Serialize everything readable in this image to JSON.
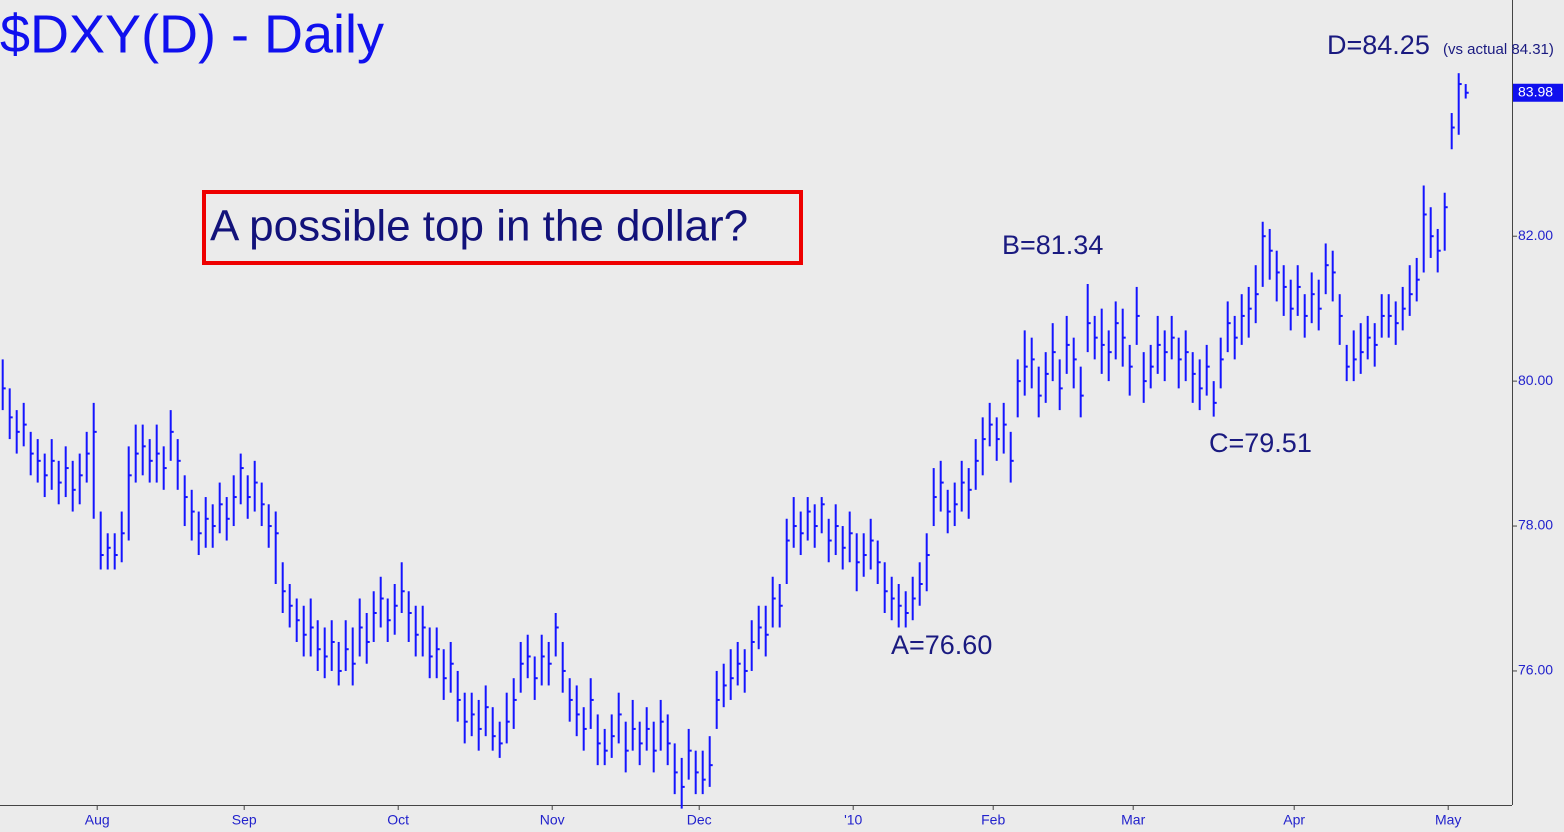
{
  "chart_data": {
    "type": "hlc",
    "title": "$DXY(D) - Daily",
    "callout": "A possible top in the dollar?",
    "annotations": [
      "A=76.60",
      "B=81.34",
      "C=79.51",
      "D=84.25",
      "(vs actual 84.31)"
    ],
    "color": "#1414ff",
    "ylim": [
      74.15,
      85.26
    ],
    "yticks": [
      {
        "value": 76,
        "label": "76.00"
      },
      {
        "value": 78,
        "label": "78.00"
      },
      {
        "value": 80,
        "label": "80.00"
      },
      {
        "value": 82,
        "label": "82.00"
      }
    ],
    "xticks": [
      {
        "value": 13.5,
        "label": "Aug"
      },
      {
        "value": 34.5,
        "label": "Sep"
      },
      {
        "value": 56.5,
        "label": "Oct"
      },
      {
        "value": 78.5,
        "label": "Nov"
      },
      {
        "value": 99.5,
        "label": "Dec"
      },
      {
        "value": 121.5,
        "label": "'10"
      },
      {
        "value": 141.5,
        "label": "Feb"
      },
      {
        "value": 161.5,
        "label": "Mar"
      },
      {
        "value": 184.5,
        "label": "Apr"
      },
      {
        "value": 206.5,
        "label": "May"
      }
    ],
    "high": [
      80.3,
      79.9,
      79.6,
      79.7,
      79.3,
      79.2,
      79.0,
      79.2,
      78.9,
      79.1,
      78.9,
      79.0,
      79.3,
      79.7,
      78.2,
      77.9,
      77.9,
      78.2,
      79.1,
      79.4,
      79.4,
      79.2,
      79.4,
      79.1,
      79.6,
      79.2,
      78.7,
      78.5,
      78.2,
      78.4,
      78.3,
      78.6,
      78.4,
      78.7,
      79.0,
      78.7,
      78.9,
      78.6,
      78.3,
      78.2,
      77.5,
      77.2,
      77.0,
      76.9,
      77.0,
      76.7,
      76.6,
      76.7,
      76.4,
      76.7,
      76.6,
      77.0,
      76.8,
      77.1,
      77.3,
      77.0,
      77.2,
      77.5,
      77.1,
      76.9,
      76.9,
      76.6,
      76.6,
      76.3,
      76.4,
      76.0,
      75.7,
      75.7,
      75.6,
      75.8,
      75.5,
      75.3,
      75.7,
      75.9,
      76.4,
      76.5,
      76.2,
      76.5,
      76.4,
      76.8,
      76.4,
      75.9,
      75.8,
      75.5,
      75.9,
      75.4,
      75.2,
      75.4,
      75.7,
      75.3,
      75.6,
      75.3,
      75.5,
      75.3,
      75.6,
      75.4,
      75.0,
      74.8,
      75.2,
      74.9,
      74.9,
      75.1,
      76.0,
      76.1,
      76.3,
      76.4,
      76.3,
      76.7,
      76.9,
      76.9,
      77.3,
      77.2,
      78.1,
      78.4,
      78.2,
      78.4,
      78.3,
      78.4,
      78.1,
      78.3,
      78.0,
      78.2,
      77.9,
      77.9,
      78.1,
      77.8,
      77.5,
      77.3,
      77.2,
      77.1,
      77.3,
      77.5,
      77.9,
      78.8,
      78.9,
      78.5,
      78.6,
      78.9,
      78.8,
      79.2,
      79.5,
      79.7,
      79.5,
      79.7,
      79.3,
      80.3,
      80.7,
      80.6,
      80.2,
      80.4,
      80.8,
      80.3,
      80.9,
      80.6,
      80.2,
      81.34,
      80.9,
      81.0,
      80.7,
      81.1,
      81.0,
      80.5,
      81.3,
      80.4,
      80.5,
      80.9,
      80.7,
      80.9,
      80.6,
      80.7,
      80.4,
      80.3,
      80.5,
      80.0,
      80.6,
      81.1,
      80.9,
      81.2,
      81.3,
      81.6,
      82.2,
      82.1,
      81.8,
      81.6,
      81.4,
      81.6,
      81.2,
      81.5,
      81.4,
      81.9,
      81.8,
      81.2,
      80.5,
      80.7,
      80.8,
      80.9,
      80.8,
      81.2,
      81.2,
      81.1,
      81.3,
      81.6,
      81.7,
      82.7,
      82.4,
      82.1,
      82.6,
      83.7,
      84.25,
      84.1
    ],
    "low": [
      79.6,
      79.2,
      79.0,
      79.1,
      78.7,
      78.6,
      78.4,
      78.5,
      78.3,
      78.4,
      78.2,
      78.3,
      78.6,
      78.1,
      77.4,
      77.4,
      77.4,
      77.5,
      77.8,
      78.6,
      78.7,
      78.6,
      78.6,
      78.5,
      78.9,
      78.5,
      78.0,
      77.8,
      77.6,
      77.7,
      77.7,
      77.9,
      77.8,
      78.0,
      78.3,
      78.1,
      78.2,
      78.0,
      77.7,
      77.2,
      76.8,
      76.6,
      76.4,
      76.2,
      76.2,
      76.0,
      75.9,
      76.0,
      75.8,
      76.0,
      75.8,
      76.2,
      76.1,
      76.4,
      76.6,
      76.4,
      76.5,
      76.8,
      76.4,
      76.2,
      76.2,
      75.9,
      75.9,
      75.6,
      75.7,
      75.3,
      75.0,
      75.1,
      74.9,
      75.1,
      74.9,
      74.8,
      75.0,
      75.2,
      75.7,
      75.9,
      75.6,
      75.8,
      75.8,
      76.2,
      75.7,
      75.3,
      75.1,
      74.9,
      75.2,
      74.7,
      74.7,
      74.8,
      75.0,
      74.6,
      74.9,
      74.7,
      74.9,
      74.6,
      74.9,
      74.7,
      74.3,
      74.1,
      74.5,
      74.3,
      74.3,
      74.4,
      75.2,
      75.5,
      75.6,
      75.8,
      75.7,
      76.0,
      76.3,
      76.2,
      76.6,
      76.6,
      77.2,
      77.7,
      77.6,
      77.8,
      77.7,
      77.9,
      77.5,
      77.6,
      77.4,
      77.5,
      77.1,
      77.3,
      77.4,
      77.2,
      76.8,
      76.7,
      76.6,
      76.6,
      76.7,
      76.9,
      77.1,
      78.0,
      78.2,
      77.9,
      78.0,
      78.2,
      78.1,
      78.5,
      78.7,
      79.1,
      78.9,
      79.0,
      78.6,
      79.5,
      79.8,
      79.9,
      79.5,
      79.7,
      80.0,
      79.6,
      80.1,
      79.9,
      79.5,
      80.4,
      80.3,
      80.1,
      80.0,
      80.3,
      80.2,
      79.8,
      80.5,
      79.7,
      79.9,
      80.1,
      80.0,
      80.3,
      79.9,
      80.0,
      79.7,
      79.6,
      79.8,
      79.51,
      79.9,
      80.4,
      80.3,
      80.5,
      80.6,
      80.8,
      81.3,
      81.4,
      81.1,
      80.9,
      80.7,
      80.9,
      80.6,
      80.8,
      80.7,
      81.2,
      81.1,
      80.5,
      80.0,
      80.0,
      80.1,
      80.3,
      80.2,
      80.6,
      80.6,
      80.5,
      80.7,
      80.9,
      81.1,
      81.5,
      81.7,
      81.5,
      81.8,
      83.2,
      83.4,
      83.9
    ],
    "close": [
      79.9,
      79.5,
      79.3,
      79.4,
      79.0,
      78.9,
      78.7,
      78.9,
      78.6,
      78.8,
      78.5,
      78.7,
      79.0,
      79.3,
      77.6,
      77.7,
      77.6,
      77.9,
      78.7,
      79.0,
      79.1,
      78.9,
      79.0,
      78.8,
      79.3,
      78.9,
      78.4,
      78.2,
      77.9,
      78.1,
      78.0,
      78.3,
      78.1,
      78.4,
      78.8,
      78.4,
      78.6,
      78.3,
      78.0,
      77.9,
      77.1,
      76.9,
      76.7,
      76.5,
      76.6,
      76.3,
      76.2,
      76.4,
      76.0,
      76.3,
      76.1,
      76.6,
      76.4,
      76.8,
      77.0,
      76.7,
      76.9,
      77.1,
      76.8,
      76.5,
      76.6,
      76.2,
      76.3,
      75.9,
      76.1,
      75.6,
      75.3,
      75.4,
      75.2,
      75.5,
      75.1,
      75.0,
      75.3,
      75.6,
      76.1,
      76.2,
      75.9,
      76.2,
      76.1,
      76.6,
      76.0,
      75.6,
      75.4,
      75.2,
      75.6,
      75.0,
      74.9,
      75.1,
      75.4,
      74.9,
      75.2,
      75.0,
      75.2,
      74.9,
      75.3,
      75.0,
      74.6,
      74.4,
      74.9,
      74.6,
      74.5,
      74.7,
      75.6,
      75.8,
      75.9,
      76.1,
      76.0,
      76.4,
      76.6,
      76.5,
      77.0,
      76.9,
      77.8,
      78.0,
      77.9,
      78.2,
      78.0,
      78.3,
      77.8,
      78.0,
      77.7,
      77.9,
      77.5,
      77.6,
      77.8,
      77.5,
      77.1,
      77.0,
      76.9,
      76.8,
      77.0,
      77.2,
      77.6,
      78.4,
      78.6,
      78.2,
      78.3,
      78.6,
      78.5,
      78.9,
      79.2,
      79.4,
      79.2,
      79.4,
      78.9,
      80.0,
      80.2,
      80.3,
      79.8,
      80.1,
      80.4,
      79.9,
      80.5,
      80.3,
      79.8,
      80.8,
      80.6,
      80.5,
      80.4,
      80.8,
      80.6,
      80.2,
      80.9,
      80.0,
      80.2,
      80.5,
      80.4,
      80.6,
      80.3,
      80.4,
      80.1,
      79.9,
      80.2,
      79.7,
      80.3,
      80.8,
      80.6,
      80.9,
      81.0,
      81.2,
      82.0,
      81.8,
      81.5,
      81.3,
      81.0,
      81.3,
      80.9,
      81.2,
      81.0,
      81.6,
      81.5,
      80.9,
      80.2,
      80.3,
      80.4,
      80.6,
      80.5,
      80.9,
      80.9,
      80.8,
      81.0,
      81.2,
      81.4,
      82.3,
      82.0,
      81.8,
      82.4,
      83.5,
      84.1,
      83.98
    ]
  }
}
